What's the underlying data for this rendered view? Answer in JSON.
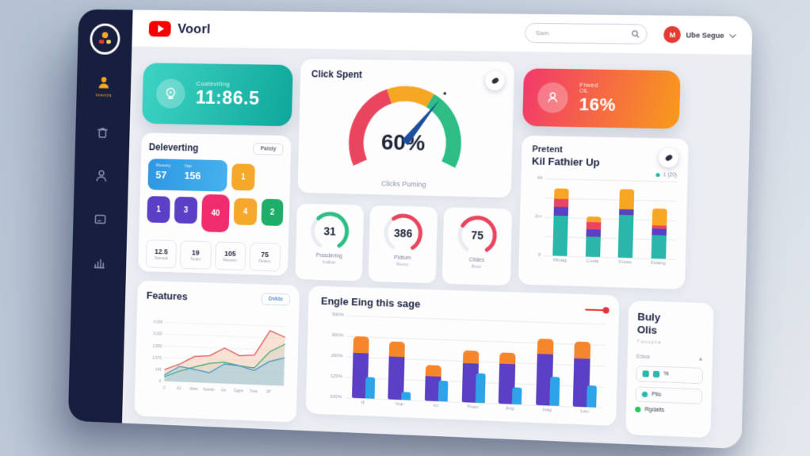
{
  "topbar": {
    "brand": "Voorl",
    "search_placeholder": "Sam.",
    "user_name": "Ube Segue",
    "avatar_initial": "M"
  },
  "sidebar": {
    "items": [
      {
        "icon": "user-icon",
        "active": true,
        "label": "tmaurpq"
      },
      {
        "icon": "trash-icon",
        "active": false,
        "label": ""
      },
      {
        "icon": "person-icon",
        "active": false,
        "label": ""
      },
      {
        "icon": "monitor-icon",
        "active": false,
        "label": ""
      },
      {
        "icon": "bar-chart-icon",
        "active": false,
        "label": ""
      }
    ]
  },
  "cards": {
    "teal_metric": {
      "label": "Coateviting",
      "value": "11:86.5",
      "gradient_from": "#3ed4c4",
      "gradient_to": "#0fa79b"
    },
    "orange_metric": {
      "label_line1": "Fiwed",
      "label_line2": "OiL",
      "value": "16%",
      "gradient_from": "#f2386c",
      "gradient_to": "#f89b1b"
    },
    "deleverting": {
      "title": "Deleverting",
      "button_label": "Paisty",
      "blue_tile": {
        "label_left": "Rwesty",
        "value_left": "57",
        "label_right": "Nat",
        "value_right": "156"
      },
      "tiles": [
        {
          "value": "1",
          "color": "#f6a82b"
        },
        {
          "value": "1",
          "color": "#5b3fc4"
        },
        {
          "value": "3",
          "color": "#5b3fc4"
        },
        {
          "value": "40",
          "color": "#ef2d6e"
        },
        {
          "value": "4",
          "color": "#f6a82b"
        },
        {
          "value": "2",
          "color": "#1fae6a"
        }
      ],
      "stats": [
        {
          "value": "12.5",
          "label": "Starunde"
        },
        {
          "value": "19",
          "label": "Toudru"
        },
        {
          "value": "105",
          "label": "Resurem"
        },
        {
          "value": "75",
          "label": "Findoro"
        }
      ]
    },
    "buly": {
      "title_line1": "Buly",
      "title_line2": "Olis",
      "subtitle": "Tqsugsa",
      "column_header": "Edwa",
      "sort_icon": "▲",
      "items": [
        {
          "type": "squares",
          "label": "%",
          "color": "#2ab7b0",
          "boxed": true
        },
        {
          "type": "dot",
          "label": "Pilo",
          "color": "#2ab7b0",
          "boxed": true
        },
        {
          "type": "dot",
          "label": "Rgdatts",
          "color": "#22c55e",
          "boxed": false
        }
      ]
    }
  },
  "chart_data": [
    {
      "id": "click-gauge",
      "type": "gauge",
      "title": "Click Spent",
      "value_label": "60%",
      "caption": "Clicks Puming",
      "start_angle": 205,
      "segments": [
        {
          "color": "#e9455f",
          "sweep": 95
        },
        {
          "color": "#f6a623",
          "sweep": 50
        },
        {
          "color": "#2dbd85",
          "sweep": 85
        }
      ],
      "needle_angle": 52,
      "needle_color": "#1d4e9e"
    },
    {
      "id": "mini-gauges",
      "type": "gauge-set",
      "items": [
        {
          "value": "31",
          "pct": 65,
          "color": "#2dbd85",
          "label_line1": "Prasdering",
          "label_line2": "Indbar"
        },
        {
          "value": "386",
          "pct": 62,
          "color": "#e9455f",
          "label_line1": "Pidtum",
          "label_line2": "Revry"
        },
        {
          "value": "75",
          "pct": 70,
          "color": "#e9455f",
          "label_line1": "Cildes",
          "label_line2": "Bnur"
        }
      ]
    },
    {
      "id": "pretent",
      "type": "stacked-bar",
      "title_line1": "Pretent",
      "title_line2": "Kil Fathier Up",
      "legend_label": "1 (20)",
      "legend_color": "#2ab7a9",
      "y_ticks": [
        "4h",
        "2m",
        "0"
      ],
      "categories": [
        "Mmag",
        "Covla",
        "Frswo",
        "Felang"
      ],
      "series_colors": [
        "#2ab7a9",
        "#5b3fc4",
        "#e9455f",
        "#f6a623"
      ],
      "stacks": [
        [
          52,
          12,
          10,
          14
        ],
        [
          26,
          9,
          10,
          7
        ],
        [
          55,
          8,
          0,
          26
        ],
        [
          30,
          9,
          4,
          22
        ]
      ]
    },
    {
      "id": "features",
      "type": "line",
      "title": "Features",
      "button_label": "Dvkte",
      "y_ticks": [
        "4,036",
        "3,020",
        "2,850",
        "1,570",
        "140"
      ],
      "x_ticks": [
        "0",
        "A2",
        "Mast",
        "Nouslo",
        "Lis",
        "Cggre",
        "Tova",
        "3P"
      ],
      "series": [
        {
          "name": "red",
          "color": "#d9534f",
          "fill": "rgba(242,153,110,0.28)",
          "points": [
            20,
            30,
            44,
            46,
            60,
            48,
            50,
            92,
            82
          ]
        },
        {
          "name": "green",
          "color": "#3aa76d",
          "fill": "rgba(90,190,140,0.12)",
          "points": [
            8,
            18,
            26,
            33,
            36,
            31,
            28,
            56,
            70
          ]
        },
        {
          "name": "blue",
          "color": "#4a90c4",
          "fill": "rgba(130,200,235,0.38)",
          "points": [
            11,
            26,
            22,
            17,
            33,
            31,
            24,
            40,
            47
          ]
        }
      ]
    },
    {
      "id": "engle",
      "type": "grouped-stacked-bar",
      "title": "Engle Eing this sage",
      "y_ticks": [
        "500%",
        "300%",
        "200%",
        "125%",
        "100%"
      ],
      "categories": [
        "Ili",
        "Vup",
        "Icr",
        "Puan",
        "Ang",
        "Ivag",
        "Lau"
      ],
      "series": [
        {
          "name": "purple",
          "color": "#5b3fc4",
          "values": [
            55,
            52,
            30,
            47,
            48,
            62,
            58
          ]
        },
        {
          "name": "orange",
          "color": "#f5862c",
          "values": [
            20,
            18,
            13,
            16,
            14,
            18,
            20
          ]
        },
        {
          "name": "blue",
          "color": "#2ea3e8",
          "values": [
            26,
            10,
            25,
            36,
            20,
            35,
            26
          ]
        }
      ],
      "legend_color": "#e8323c"
    }
  ]
}
